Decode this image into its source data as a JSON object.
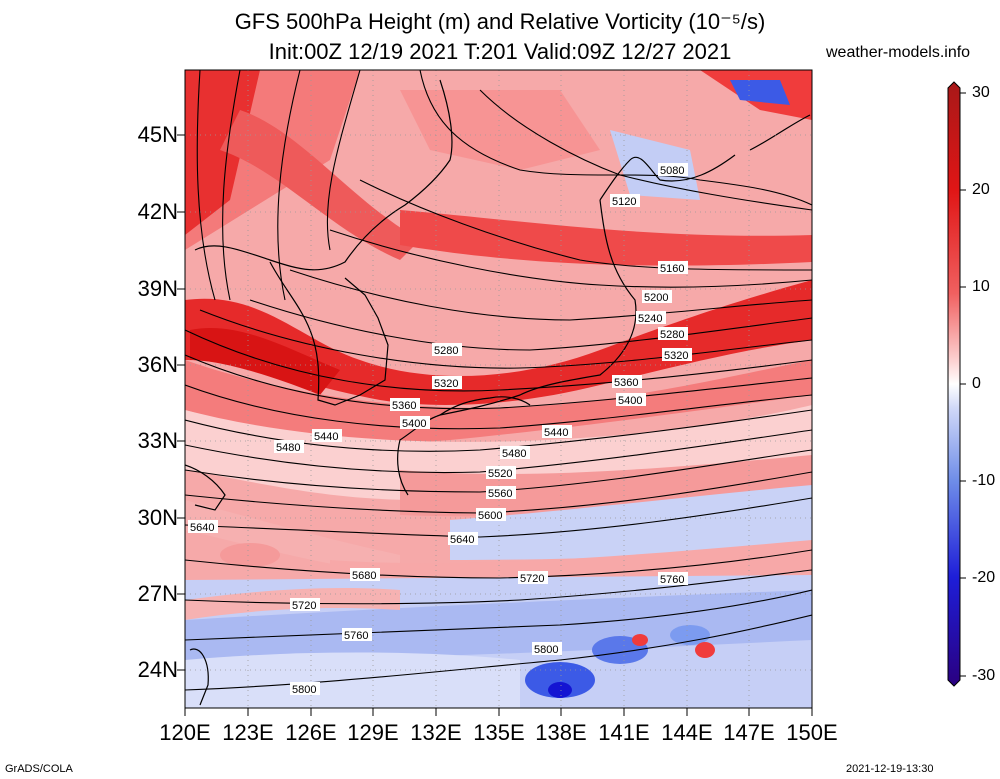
{
  "title_line1": "GFS 500hPa Height (m) and Relative Vorticity (10⁻⁵/s)",
  "title_line2": "Init:00Z 12/19 2021 T:201 Valid:09Z 12/27 2021",
  "brand": "weather-models.info",
  "footer_left": "GrADS/COLA",
  "footer_right": "2021-12-19-13:30",
  "lat_labels": [
    "45N",
    "42N",
    "39N",
    "36N",
    "33N",
    "30N",
    "27N",
    "24N"
  ],
  "lon_labels": [
    "120E",
    "123E",
    "126E",
    "129E",
    "132E",
    "135E",
    "138E",
    "141E",
    "144E",
    "147E",
    "150E"
  ],
  "colorbar": {
    "labels": [
      "30",
      "20",
      "10",
      "0",
      "-10",
      "-20",
      "-30"
    ],
    "range": [
      -30,
      30
    ],
    "colors": [
      "#2a0080",
      "#1414d2",
      "#3c5ae6",
      "#7c9bf0",
      "#c3cdf5",
      "#ffffff",
      "#fac3c3",
      "#f87c7c",
      "#f03c3c",
      "#dc1414",
      "#a81818"
    ]
  },
  "contour_labels": [
    "5080",
    "5120",
    "5160",
    "5200",
    "5240",
    "5280",
    "5320",
    "5360",
    "5400",
    "5440",
    "5480",
    "5520",
    "5560",
    "5600",
    "5640",
    "5680",
    "5720",
    "5760",
    "5800"
  ]
}
